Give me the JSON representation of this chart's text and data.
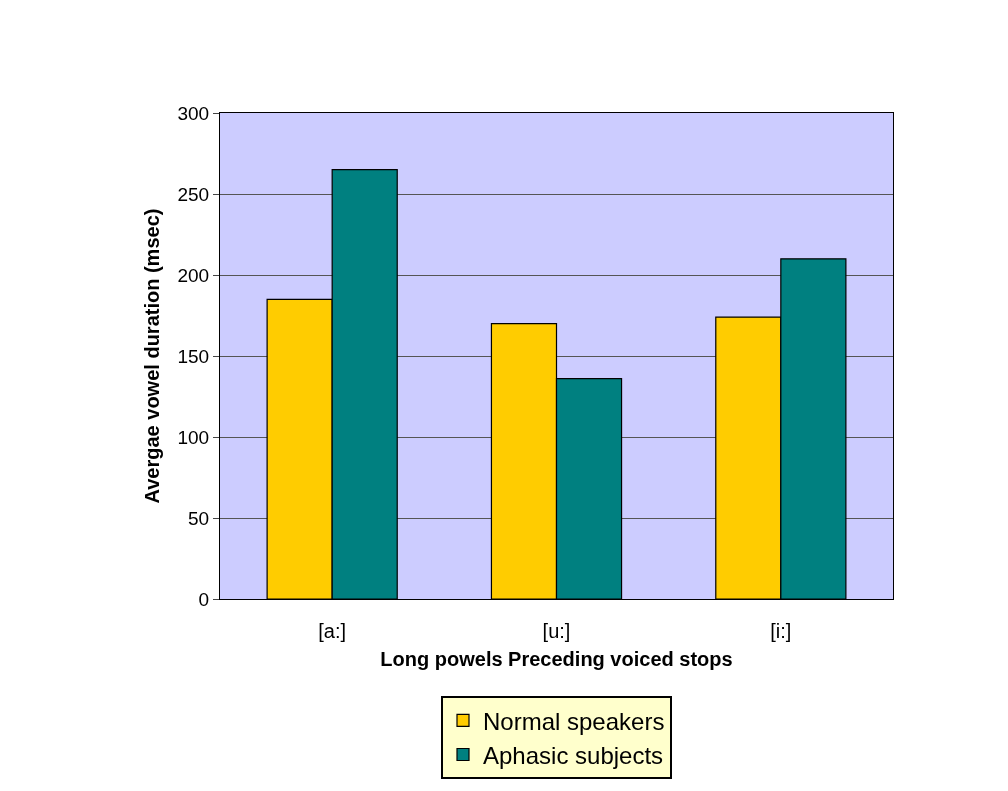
{
  "chart_data": {
    "type": "bar",
    "xlabel": "Long powels Preceding voiced stops",
    "ylabel": "Avergae vowel duration (msec)",
    "categories": [
      "[a:]",
      "[u:]",
      "[i:]"
    ],
    "series": [
      {
        "name": "Normal speakers",
        "color": "#ffcc00",
        "values": [
          185,
          170,
          174
        ]
      },
      {
        "name": "Aphasic subjects",
        "color": "#008080",
        "values": [
          265,
          136,
          210
        ]
      }
    ],
    "ylim": [
      0,
      300
    ],
    "yticks": [
      0,
      50,
      100,
      150,
      200,
      250,
      300
    ],
    "grid": "y",
    "legend": "bottom"
  }
}
